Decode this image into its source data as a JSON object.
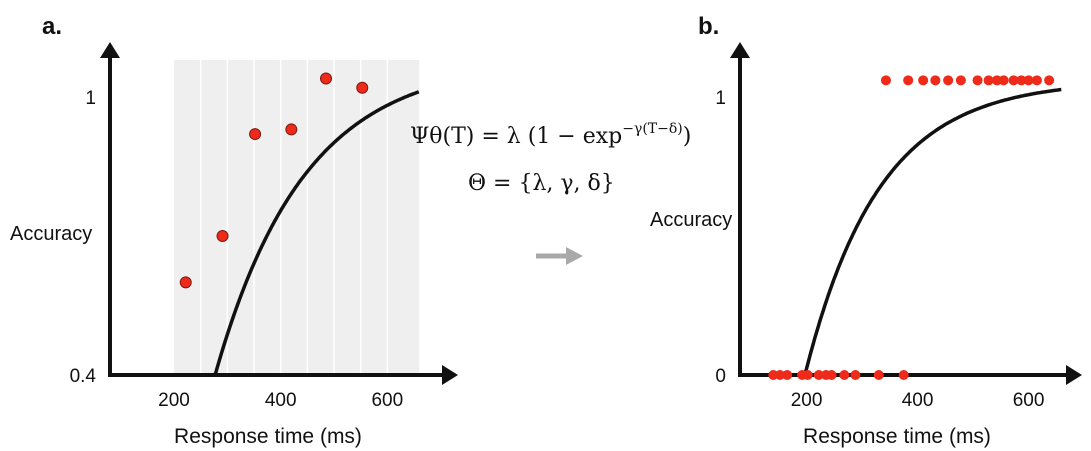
{
  "figure": {
    "panel_a_label": "a.",
    "panel_b_label": "b.",
    "equation_lhs": "Ψθ(T) = λ (1 − exp",
    "equation_exp": "−γ(T−δ)",
    "equation_close": ")",
    "equation_params": "Θ = {λ, γ, δ}",
    "arrow_icon": "arrow-right-icon"
  },
  "colors": {
    "point": "#ee2a1b",
    "point_stroke": "#7a1a10",
    "curve": "#111111",
    "axis": "#111111",
    "shade": "#efefef",
    "arrow": "#a9a9a9"
  },
  "chart_data": [
    {
      "type": "scatter",
      "panel": "a.",
      "xlabel": "Response time (ms)",
      "ylabel": "Accuracy",
      "x_ticks": [
        200,
        400,
        600
      ],
      "y_ticks": [
        0.4,
        1
      ],
      "xlim": [
        80,
        680
      ],
      "ylim": [
        0.4,
        1.06
      ],
      "grid": true,
      "shaded_region": [
        200,
        660
      ],
      "grid_x": [
        250,
        300,
        350,
        400,
        450,
        500,
        550,
        600
      ],
      "points": {
        "x": [
          222,
          291,
          352,
          420,
          485,
          553
        ],
        "y": [
          0.6,
          0.7,
          0.92,
          0.93,
          1.04,
          1.02
        ]
      },
      "curve": {
        "lambda": 1.08,
        "gamma": 0.006,
        "delta": 200,
        "x_range": [
          200,
          660
        ]
      }
    },
    {
      "type": "scatter",
      "panel": "b.",
      "xlabel": "Response time (ms)",
      "ylabel": "Accuracy",
      "x_ticks": [
        200,
        400,
        600
      ],
      "y_ticks": [
        0,
        1
      ],
      "xlim": [
        80,
        680
      ],
      "ylim": [
        0,
        1.08
      ],
      "grid": false,
      "points": {
        "x": [
          140,
          152,
          165,
          192,
          202,
          222,
          235,
          245,
          268,
          288,
          330,
          375,
          343,
          383,
          410,
          432,
          455,
          478,
          508,
          528,
          543,
          555,
          573,
          587,
          600,
          615,
          637
        ],
        "y": [
          0,
          0,
          0,
          0,
          0,
          0,
          0,
          0,
          0,
          0,
          0,
          0,
          1.06,
          1.06,
          1.06,
          1.06,
          1.06,
          1.06,
          1.06,
          1.06,
          1.06,
          1.06,
          1.06,
          1.06,
          1.06,
          1.06,
          1.06
        ]
      },
      "curve": {
        "lambda": 1.06,
        "gamma": 0.0075,
        "delta": 197,
        "x_range": [
          197,
          660
        ]
      }
    }
  ]
}
